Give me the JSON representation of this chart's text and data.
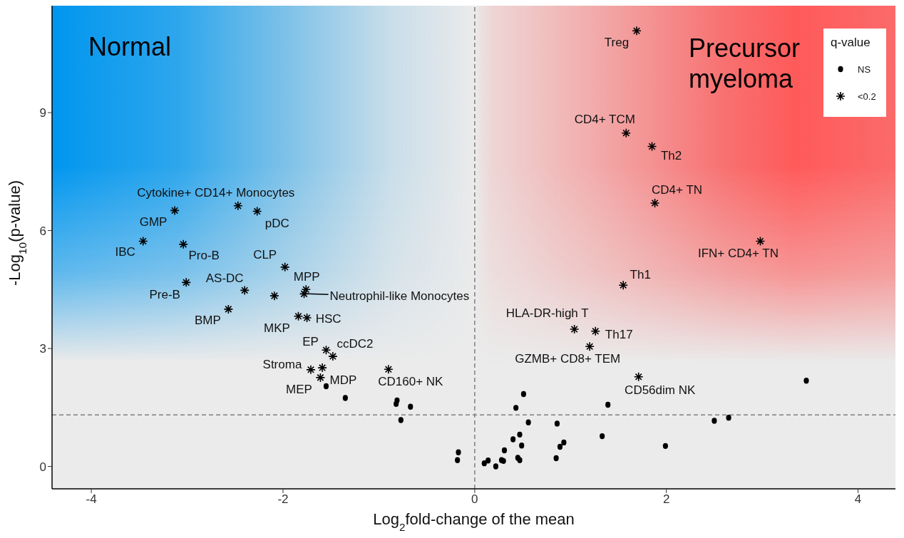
{
  "chart_data": {
    "type": "scatter",
    "xlabel": "Log$_{2}$fold-change of the mean",
    "ylabel": "-Log$_{10}$(p-value)",
    "legend_title": "q-value",
    "legend": "top right",
    "grid": false,
    "xlim": [
      -4.41,
      4.39
    ],
    "xticks": [
      -4,
      -2,
      0,
      2,
      4
    ],
    "ylim": [
      -0.57,
      11.72
    ],
    "yticks": [
      0,
      3,
      6,
      9
    ],
    "ref_lines": [
      {
        "axis": "x",
        "value": 0,
        "label": null,
        "color": "#7f7f7f",
        "line_style": "dashed"
      },
      {
        "axis": "y",
        "value": 1.31,
        "label": null,
        "color": "#7f7f7f",
        "line_style": "dashed"
      }
    ],
    "series": [
      {
        "name": "NS",
        "color": "#000000",
        "marker": "circle",
        "x": [
          -1.55,
          -1.35,
          -0.81,
          -0.82,
          -0.67,
          -0.77,
          -0.17,
          -0.18,
          0.1,
          0.14,
          0.22,
          0.28,
          0.3,
          0.31,
          0.4,
          0.43,
          0.45,
          0.47,
          0.47,
          0.49,
          0.51,
          0.56,
          0.85,
          0.86,
          0.89,
          0.93,
          1.33,
          1.39,
          1.99,
          2.5,
          2.65,
          3.46
        ],
        "values": [
          2.04,
          1.74,
          1.68,
          1.59,
          1.52,
          1.18,
          0.36,
          0.16,
          0.08,
          0.15,
          0.0,
          0.16,
          0.14,
          0.41,
          0.69,
          1.49,
          0.22,
          0.16,
          0.81,
          0.53,
          1.84,
          1.12,
          0.21,
          1.09,
          0.5,
          0.61,
          0.77,
          1.57,
          0.52,
          1.16,
          1.24,
          2.18
        ]
      },
      {
        "name": "<0.2",
        "color": "#000000",
        "marker": "cross",
        "x": [
          1.69,
          1.58,
          1.85,
          1.88,
          2.98,
          1.55,
          1.04,
          1.26,
          1.2,
          1.71,
          -2.47,
          -3.13,
          -2.27,
          -3.46,
          -3.04,
          -1.98,
          -3.01,
          -2.4,
          -2.09,
          -1.76,
          -1.78,
          -2.57,
          -1.84,
          -1.75,
          -1.55,
          -1.48,
          -1.71,
          -1.59,
          -1.61,
          -0.9
        ],
        "values": [
          11.08,
          8.48,
          8.14,
          6.7,
          5.73,
          4.61,
          3.49,
          3.44,
          3.05,
          2.28,
          6.63,
          6.51,
          6.49,
          5.73,
          5.65,
          5.07,
          4.68,
          4.48,
          4.34,
          4.5,
          4.39,
          4.0,
          3.82,
          3.78,
          2.96,
          2.8,
          2.46,
          2.51,
          2.26,
          2.47
        ]
      }
    ],
    "annotations": [
      "Normal",
      "Precursor myeloma",
      {
        "text": "Treg",
        "x": 1.69,
        "y": 11.08
      },
      {
        "text": "CD4+ TCM",
        "x": 1.58,
        "y": 8.48
      },
      {
        "text": "Th2",
        "x": 1.85,
        "y": 8.14
      },
      {
        "text": "CD4+ TN",
        "x": 1.88,
        "y": 6.7
      },
      {
        "text": "IFN+ CD4+ TN",
        "x": 2.98,
        "y": 5.73
      },
      {
        "text": "Th1",
        "x": 1.55,
        "y": 4.61
      },
      {
        "text": "HLA-DR-high T",
        "x": 1.04,
        "y": 3.49
      },
      {
        "text": "Th17",
        "x": 1.26,
        "y": 3.44
      },
      {
        "text": "GZMB+ CD8+ TEM",
        "x": 1.2,
        "y": 3.05
      },
      {
        "text": "CD56dim NK",
        "x": 1.71,
        "y": 2.28
      },
      {
        "text": "Cytokine+ CD14+ Monocytes",
        "x": -2.47,
        "y": 6.63
      },
      {
        "text": "GMP",
        "x": -3.13,
        "y": 6.51
      },
      {
        "text": "pDC",
        "x": -2.27,
        "y": 6.49
      },
      {
        "text": "IBC",
        "x": -3.46,
        "y": 5.73
      },
      {
        "text": "Pro-B",
        "x": -3.04,
        "y": 5.65
      },
      {
        "text": "CLP",
        "x": -1.98,
        "y": 5.07
      },
      {
        "text": "Pre-B",
        "x": -3.01,
        "y": 4.68
      },
      {
        "text": "AS-DC",
        "x": -2.4,
        "y": 4.48
      },
      {
        "text": "MPP",
        "x": -1.76,
        "y": 4.5
      },
      {
        "text": "Neutrophil-like Monocytes",
        "x": -1.78,
        "y": 4.39
      },
      {
        "text": "BMP",
        "x": -2.57,
        "y": 4.0
      },
      {
        "text": "MKP",
        "x": -1.84,
        "y": 3.82
      },
      {
        "text": "HSC",
        "x": -1.75,
        "y": 3.78
      },
      {
        "text": "EP",
        "x": -1.55,
        "y": 2.96
      },
      {
        "text": "ccDC2",
        "x": -1.48,
        "y": 2.8
      },
      {
        "text": "Stroma",
        "x": -1.71,
        "y": 2.46
      },
      {
        "text": "MEP",
        "x": -1.61,
        "y": 2.26
      },
      {
        "text": "MDP",
        "x": -1.55,
        "y": 2.04
      },
      {
        "text": "CD160+ NK",
        "x": -0.9,
        "y": 2.47
      }
    ]
  }
}
